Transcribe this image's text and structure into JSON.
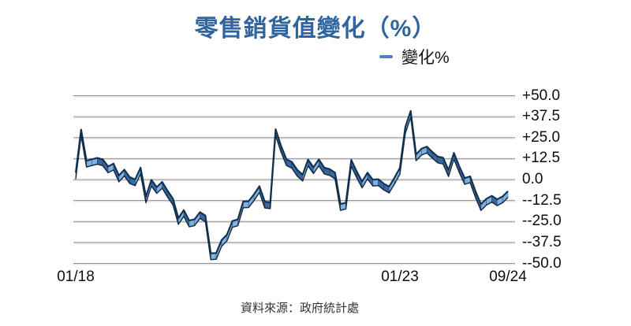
{
  "page": {
    "background": "#ffffff"
  },
  "chart": {
    "title": "零售銷貨值變化（%）",
    "title_color": "#30649E",
    "legend": {
      "label": "變化%",
      "marker_color": "#4D7EBF"
    },
    "source": "資料來源：政府統計處"
  },
  "chart_data": {
    "type": "line",
    "title": "零售銷貨值變化（%）",
    "series_name": "變化%",
    "frequency": "monthly",
    "x_start": "01/18",
    "x_end": "09/24",
    "x_tick_labels": [
      "01/18",
      "01/23",
      "09/24"
    ],
    "x_tick_month_indices": [
      0,
      60,
      80
    ],
    "y_tick_labels": [
      "+50.0",
      "+37.5",
      "+25.0",
      "+12.5",
      "0.0",
      "--12.5",
      "--25.0",
      "--37.5",
      "--50.0"
    ],
    "y_tick_values": [
      50,
      37.5,
      25,
      12.5,
      0,
      -12.5,
      -25,
      -37.5,
      -50
    ],
    "ylim": [
      -50,
      50
    ],
    "grid": "horizontal",
    "legend_position": "top-right",
    "style": "3d-ribbon",
    "values": [
      4.1,
      29.8,
      11.2,
      12.1,
      12.9,
      12.0,
      7.8,
      9.5,
      2.4,
      5.9,
      1.4,
      0.1,
      7.1,
      -10.1,
      -0.2,
      -4.5,
      -1.4,
      -6.7,
      -11.4,
      -23.0,
      -18.2,
      -24.4,
      -23.7,
      -19.4,
      -21.5,
      -44.0,
      -43.8,
      -36.1,
      -32.8,
      -24.7,
      -23.8,
      -13.1,
      -12.9,
      -8.8,
      -4.0,
      -13.2,
      -13.6,
      30.0,
      20.1,
      12.1,
      10.5,
      5.8,
      2.9,
      11.9,
      7.3,
      12.0,
      7.1,
      6.2,
      4.1,
      -14.6,
      -13.8,
      11.7,
      4.9,
      -1.2,
      4.1,
      -0.1,
      0.2,
      -2.4,
      -4.2,
      1.1,
      7.0,
      31.3,
      40.9,
      15.0,
      18.4,
      19.6,
      16.5,
      13.7,
      13.0,
      5.6,
      15.9,
      7.8,
      0.9,
      1.9,
      -7.0,
      -14.7,
      -11.5,
      -9.7,
      -11.8,
      -10.1,
      -6.9
    ],
    "line_colors": {
      "edge": "#10304F",
      "bottom_edge": "#0A1C30",
      "face_up": "#7FB2E2",
      "face_down": "#38689F",
      "gridline": "#8F8F8F"
    }
  }
}
